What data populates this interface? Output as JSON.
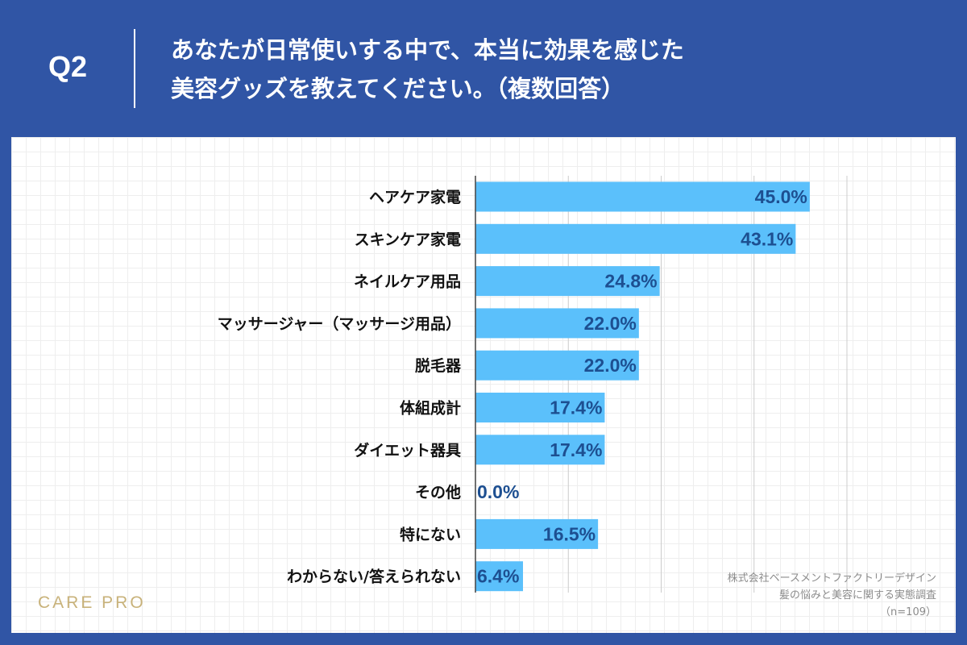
{
  "header": {
    "question_number": "Q2",
    "title_line1": "あなたが日常使いする中で、本当に効果を感じた",
    "title_line2": "美容グッズを教えてください。（複数回答）"
  },
  "chart_data": {
    "type": "bar",
    "orientation": "horizontal",
    "categories": [
      "ヘアケア家電",
      "スキンケア家電",
      "ネイルケア用品",
      "マッサージャー（マッサージ用品）",
      "脱毛器",
      "体組成計",
      "ダイエット器具",
      "その他",
      "特にない",
      "わからない/答えられない"
    ],
    "values": [
      45.0,
      43.1,
      24.8,
      22.0,
      22.0,
      17.4,
      17.4,
      0.0,
      16.5,
      6.4
    ],
    "value_labels": [
      "45.0%",
      "43.1%",
      "24.8%",
      "22.0%",
      "22.0%",
      "17.4%",
      "17.4%",
      "0.0%",
      "16.5%",
      "6.4%"
    ],
    "xlim": [
      0,
      60
    ],
    "grid": true,
    "colors": {
      "bar": "#5bc0fb",
      "value_text": "#1d4f91",
      "axis": "#444444",
      "gridline": "#cccccc"
    }
  },
  "footer": {
    "logo": "CARE PRO",
    "source_line1": "株式会社ベースメントファクトリーデザイン",
    "source_line2": "髪の悩みと美容に関する実態調査",
    "sample_size": "（n=109）"
  },
  "colors": {
    "background": "#3055a5",
    "panel": "#ffffff",
    "logo": "#c8b27a"
  }
}
